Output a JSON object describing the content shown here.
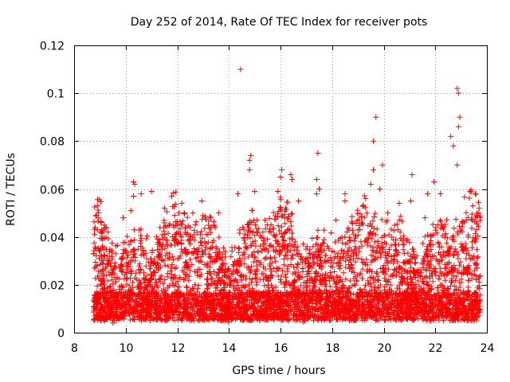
{
  "chart_data": {
    "type": "scatter",
    "title": "Day 252 of 2014, Rate Of TEC Index for receiver pots",
    "xlabel": "GPS time / hours",
    "ylabel": "ROTI / TECUs",
    "xlim": [
      8,
      24
    ],
    "ylim": [
      0,
      0.12
    ],
    "xticks": [
      8,
      10,
      12,
      14,
      16,
      18,
      20,
      22,
      24
    ],
    "xtick_labels": [
      "8",
      "10",
      "12",
      "14",
      "16",
      "18",
      "20",
      "22",
      "24"
    ],
    "yticks": [
      0,
      0.02,
      0.04,
      0.06,
      0.08,
      0.1,
      0.12
    ],
    "ytick_labels": [
      "0",
      "0.02",
      "0.04",
      "0.06",
      "0.08",
      "0.1",
      "0.12"
    ],
    "grid": true,
    "marker": "+",
    "marker_color": "#ff0000",
    "data_range_x": [
      8.75,
      23.75
    ],
    "series": [
      {
        "name": "ROTI",
        "points": [
          [
            14.45,
            0.11
          ],
          [
            22.85,
            0.102
          ],
          [
            22.9,
            0.1
          ],
          [
            22.95,
            0.09
          ],
          [
            19.7,
            0.09
          ],
          [
            22.9,
            0.086
          ],
          [
            22.6,
            0.082
          ],
          [
            22.7,
            0.078
          ],
          [
            19.6,
            0.08
          ],
          [
            17.45,
            0.075
          ],
          [
            14.85,
            0.074
          ],
          [
            14.8,
            0.072
          ],
          [
            19.95,
            0.07
          ],
          [
            14.8,
            0.068
          ],
          [
            16.05,
            0.068
          ],
          [
            16.4,
            0.066
          ],
          [
            19.6,
            0.068
          ],
          [
            16.0,
            0.065
          ],
          [
            21.1,
            0.066
          ],
          [
            17.4,
            0.064
          ],
          [
            10.3,
            0.063
          ],
          [
            10.35,
            0.062
          ],
          [
            16.45,
            0.064
          ],
          [
            22.85,
            0.07
          ],
          [
            21.95,
            0.063
          ],
          [
            11.0,
            0.059
          ],
          [
            10.6,
            0.058
          ],
          [
            12.95,
            0.055
          ],
          [
            15.0,
            0.059
          ],
          [
            17.5,
            0.06
          ],
          [
            19.5,
            0.062
          ],
          [
            19.85,
            0.06
          ],
          [
            14.35,
            0.058
          ],
          [
            21.7,
            0.058
          ],
          [
            22.2,
            0.058
          ],
          [
            23.35,
            0.059
          ],
          [
            23.55,
            0.058
          ],
          [
            10.3,
            0.057
          ],
          [
            16.7,
            0.055
          ],
          [
            18.5,
            0.058
          ],
          [
            18.5,
            0.055
          ],
          [
            15.9,
            0.059
          ],
          [
            17.4,
            0.058
          ],
          [
            8.95,
            0.05
          ],
          [
            9.9,
            0.048
          ],
          [
            11.5,
            0.052
          ],
          [
            13.6,
            0.05
          ],
          [
            20.15,
            0.05
          ],
          [
            23.7,
            0.052
          ],
          [
            12.6,
            0.05
          ],
          [
            10.2,
            0.051
          ],
          [
            21.05,
            0.055
          ],
          [
            19.3,
            0.056
          ],
          [
            20.6,
            0.054
          ],
          [
            9.05,
            0.046
          ],
          [
            11.9,
            0.049
          ],
          [
            13.3,
            0.048
          ],
          [
            15.4,
            0.047
          ],
          [
            18.15,
            0.047
          ],
          [
            21.6,
            0.048
          ]
        ]
      }
    ]
  }
}
